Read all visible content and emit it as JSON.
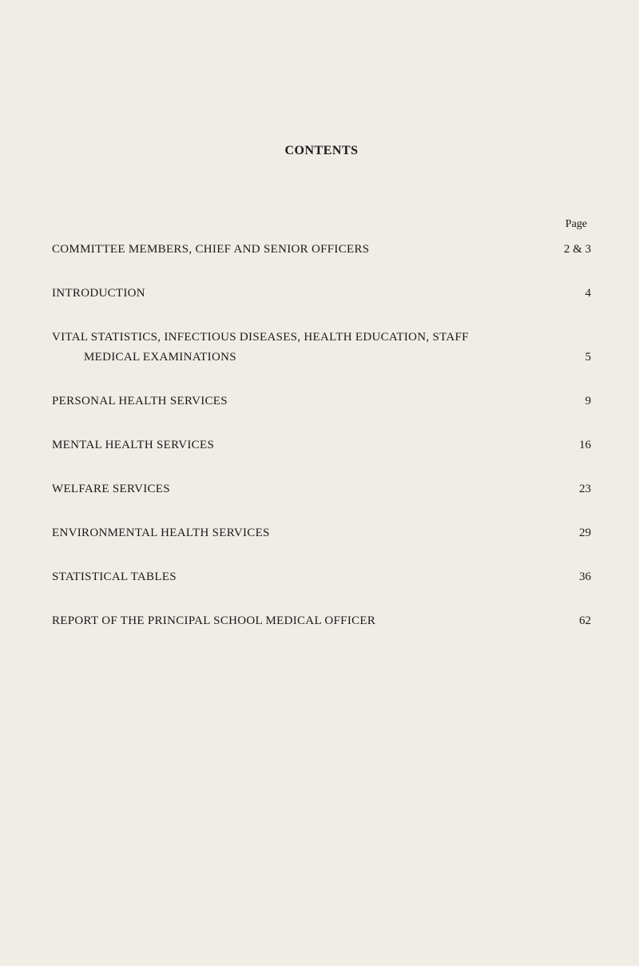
{
  "title": "CONTENTS",
  "pageHeaderLabel": "Page",
  "entries": [
    {
      "text": "COMMITTEE MEMBERS, CHIEF AND SENIOR OFFICERS",
      "page": "2 & 3",
      "multiline": false
    },
    {
      "text": "INTRODUCTION",
      "page": "4",
      "multiline": false
    },
    {
      "text": "VITAL STATISTICS, INFECTIOUS DISEASES, HEALTH EDUCATION, STAFF",
      "text2": "MEDICAL EXAMINATIONS",
      "page": "5",
      "multiline": true
    },
    {
      "text": "PERSONAL HEALTH SERVICES",
      "page": "9",
      "multiline": false
    },
    {
      "text": "MENTAL HEALTH SERVICES",
      "page": "16",
      "multiline": false
    },
    {
      "text": "WELFARE SERVICES",
      "page": "23",
      "multiline": false
    },
    {
      "text": "ENVIRONMENTAL HEALTH SERVICES",
      "page": "29",
      "multiline": false
    },
    {
      "text": "STATISTICAL TABLES",
      "page": "36",
      "multiline": false
    },
    {
      "text": "REPORT OF THE PRINCIPAL SCHOOL MEDICAL OFFICER",
      "page": "62",
      "multiline": false
    }
  ],
  "styling": {
    "backgroundColor": "#f0ede6",
    "textColor": "#1a1a1a",
    "titleFontSize": 16,
    "bodyFontSize": 15,
    "pageHeaderFontSize": 14,
    "entrySpacing": 38,
    "fontFamily": "Georgia, Times New Roman, serif"
  }
}
